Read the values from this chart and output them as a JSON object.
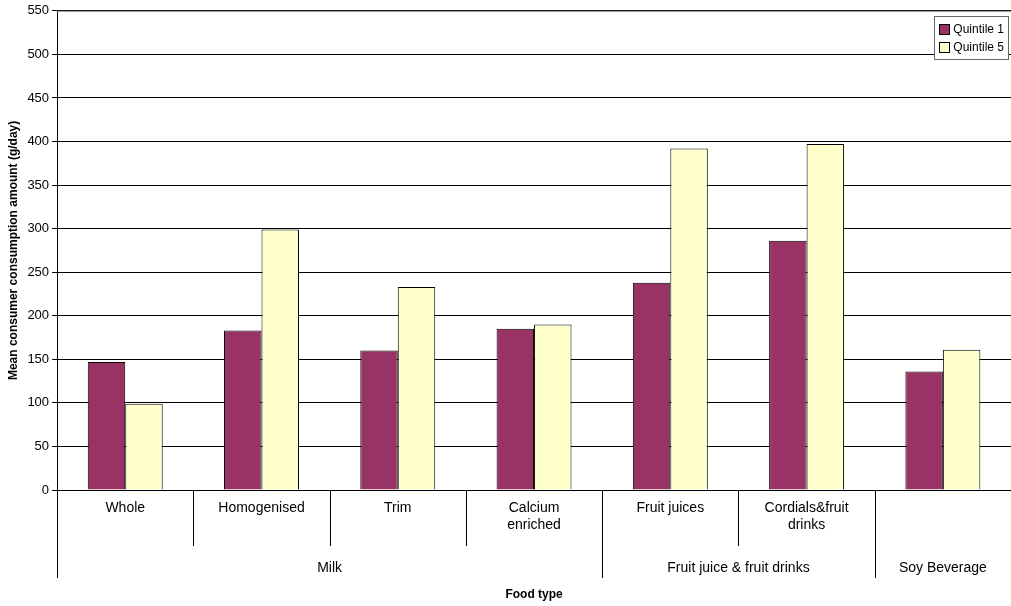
{
  "chart_data": {
    "type": "bar",
    "xlabel": "Food type",
    "ylabel": "Mean consumer consumption amount (g/day)",
    "categories": [
      "Whole",
      "Homogenised",
      "Trim",
      "Calcium enriched",
      "Fruit juices",
      "Cordials&fruit drinks",
      null
    ],
    "series": [
      {
        "name": "Quintile 1",
        "color": "#993366",
        "values": [
          147,
          183,
          160,
          185,
          238,
          286,
          136
        ]
      },
      {
        "name": "Quintile 5",
        "color": "#ffffcc",
        "values": [
          99,
          299,
          233,
          190,
          392,
          397,
          161
        ]
      }
    ],
    "ylim": [
      0,
      550
    ],
    "yticks": [
      0,
      50,
      100,
      150,
      200,
      250,
      300,
      350,
      400,
      450,
      500,
      550
    ],
    "grid": "y",
    "legend": "top right",
    "annotations": [
      "Milk",
      "Fruit juice & fruit drinks",
      "Soy Beverage"
    ]
  }
}
